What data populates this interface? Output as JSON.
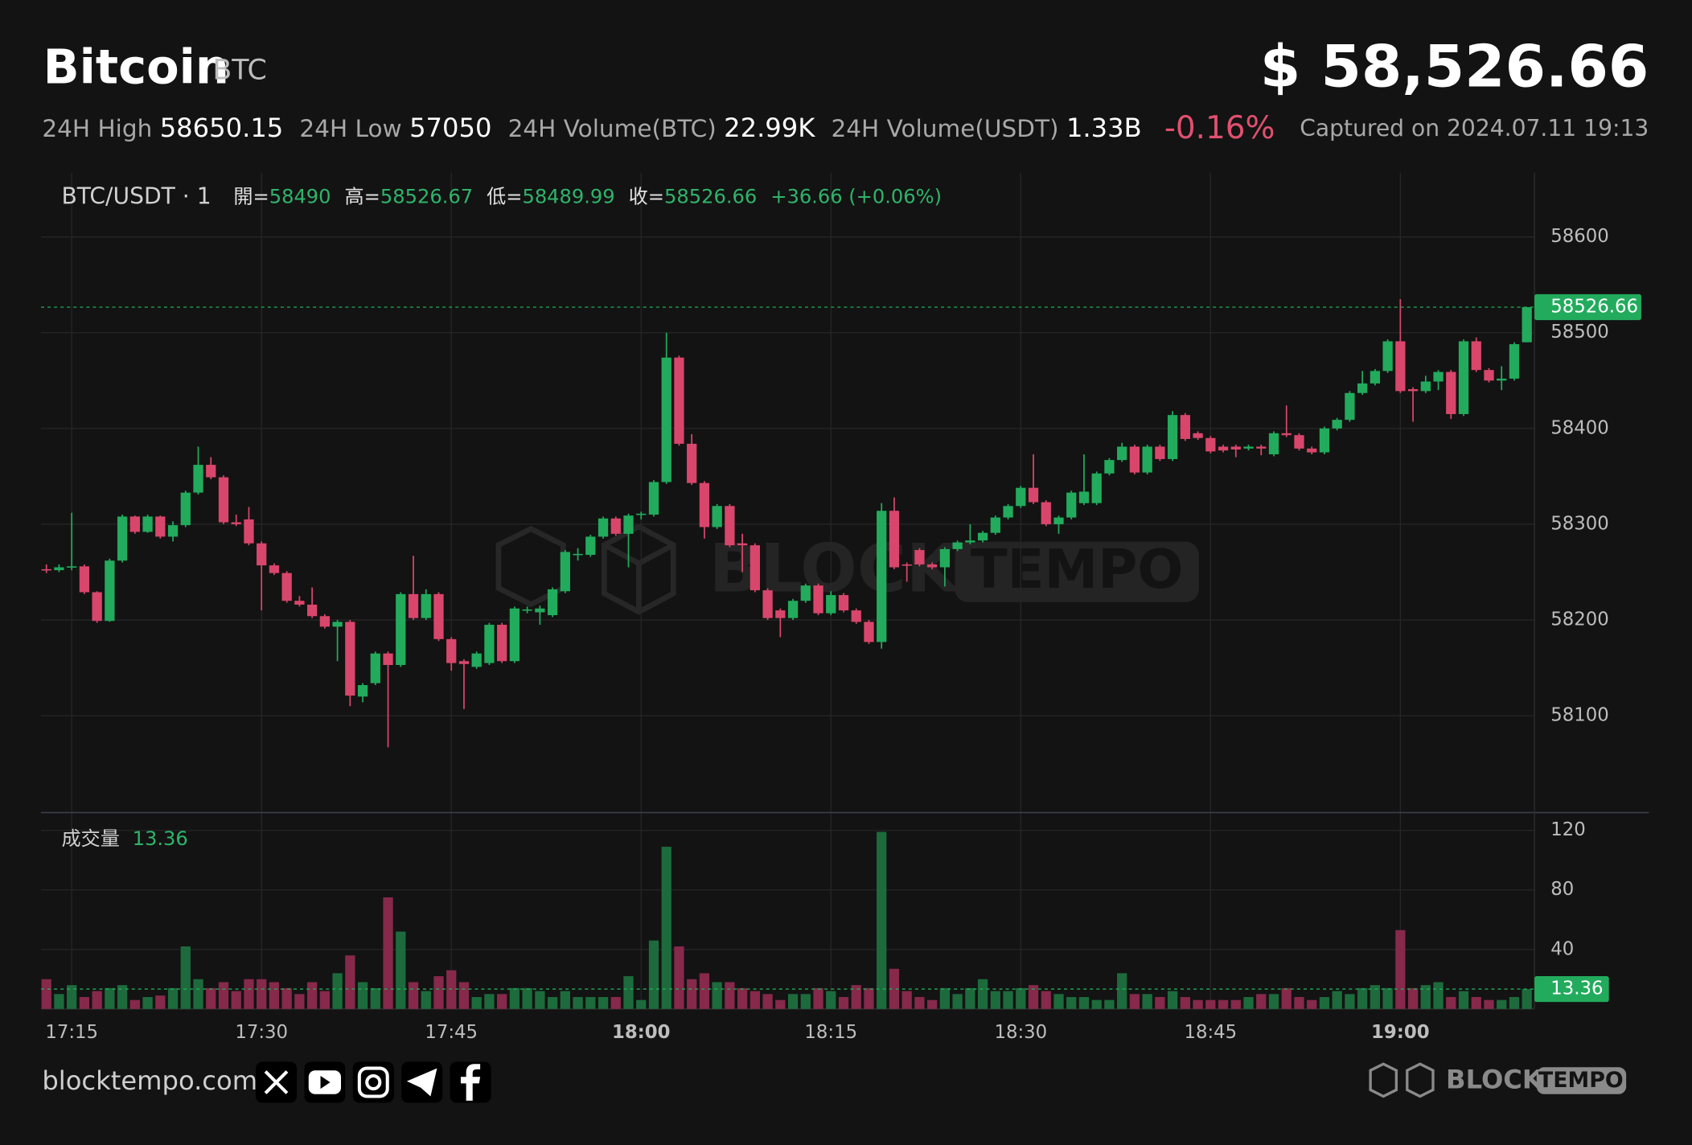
{
  "header": {
    "title": "Bitcoin",
    "symbol": "BTC",
    "price": "$ 58,526.66",
    "stats": [
      {
        "label": "24H High",
        "value": "58650.15"
      },
      {
        "label": "24H Low",
        "value": "57050"
      },
      {
        "label": "24H Volume(BTC)",
        "value": "22.99K"
      },
      {
        "label": "24H Volume(USDT)",
        "value": "1.33B"
      }
    ],
    "change": "-0.16%",
    "captured": "Captured on 2024.07.11 19:13"
  },
  "chart_data": {
    "type": "candlestick",
    "pair_label": "BTC/USDT · 1",
    "legend_labels": [
      "開=",
      "高=",
      "低=",
      "收="
    ],
    "change_label": "+36.66 (+0.06%)",
    "volume_label": "成交量",
    "up_color": "#22ab5c",
    "down_color": "#d9466b",
    "volume_up_color": "#1d6b3c",
    "volume_down_color": "#86294a",
    "grid": true,
    "categories": [
      null,
      null,
      "17:15",
      null,
      null,
      null,
      null,
      null,
      null,
      null,
      null,
      null,
      null,
      null,
      null,
      null,
      null,
      "17:30",
      null,
      null,
      null,
      null,
      null,
      null,
      null,
      null,
      null,
      null,
      null,
      null,
      null,
      null,
      "17:45",
      null,
      null,
      null,
      null,
      null,
      null,
      null,
      null,
      null,
      null,
      null,
      null,
      null,
      null,
      "18:00",
      null,
      null,
      null,
      null,
      null,
      null,
      null,
      null,
      null,
      null,
      null,
      null,
      null,
      null,
      "18:15",
      null,
      null,
      null,
      null,
      null,
      null,
      null,
      null,
      null,
      null,
      null,
      null,
      null,
      null,
      "18:30",
      null,
      null,
      null,
      null,
      null,
      null,
      null,
      null,
      null,
      null,
      null,
      null,
      null,
      null,
      "18:45",
      null,
      null,
      null,
      null,
      null,
      null,
      null,
      null,
      null,
      null,
      null,
      null,
      null,
      null,
      "19:00",
      null,
      null,
      null,
      null,
      null,
      null,
      null,
      null,
      null,
      null
    ],
    "open": [
      58253,
      58252,
      58255,
      58256,
      58229,
      58199,
      58262,
      58308,
      58292,
      58308,
      58287,
      58299,
      58333,
      58362,
      58349,
      58302,
      58305,
      58280,
      58257,
      58249,
      58220,
      58216,
      58204,
      58193,
      58198,
      58120,
      58134,
      58165,
      58153,
      58227,
      58202,
      58227,
      58180,
      58157,
      58151,
      58155,
      58195,
      58157,
      58210,
      58208,
      58205,
      58230,
      58268,
      58268,
      58287,
      58306,
      58290,
      58310,
      58310,
      58344,
      58474,
      58384,
      58343,
      58297,
      58319,
      58280,
      58278,
      58231,
      58210,
      58202,
      58220,
      58236,
      58207,
      58226,
      58210,
      58198,
      58177,
      58314,
      58258,
      58273,
      58258,
      58255,
      58274,
      58281,
      58283,
      58291,
      58307,
      58319,
      58338,
      58323,
      58300,
      58307,
      58322,
      58322,
      58353,
      58367,
      58381,
      58354,
      58381,
      58368,
      58414,
      58395,
      58390,
      58381,
      58381,
      58379,
      58381,
      58373,
      58395,
      58393,
      58379,
      58375,
      58400,
      58409,
      58437,
      58447,
      58460,
      58491,
      58441,
      58439,
      58449,
      58459,
      58415,
      58491,
      58461,
      58450,
      58452,
      58490
    ],
    "high": [
      58258,
      58258,
      58312,
      58258,
      58230,
      58264,
      58310,
      58309,
      58310,
      58309,
      58303,
      58335,
      58381,
      58370,
      58351,
      58310,
      58318,
      58282,
      58259,
      58251,
      58225,
      58234,
      58206,
      58200,
      58200,
      58134,
      58167,
      58167,
      58229,
      58267,
      58232,
      58229,
      58182,
      58159,
      58167,
      58197,
      58197,
      58214,
      58214,
      58215,
      58234,
      58273,
      58275,
      58289,
      58308,
      58308,
      58311,
      58313,
      58346,
      58500,
      58476,
      58394,
      58345,
      58321,
      58321,
      58290,
      58280,
      58233,
      58212,
      58222,
      58238,
      58238,
      58230,
      58228,
      58212,
      58200,
      58322,
      58328,
      58260,
      58275,
      58260,
      58276,
      58283,
      58300,
      58293,
      58309,
      58321,
      58340,
      58373,
      58325,
      58309,
      58335,
      58373,
      58355,
      58369,
      58385,
      58383,
      58383,
      58383,
      58418,
      58416,
      58397,
      58392,
      58383,
      58383,
      58383,
      58383,
      58397,
      58424,
      58395,
      58381,
      58402,
      58411,
      58439,
      58460,
      58462,
      58493,
      58535,
      58443,
      58455,
      58461,
      58461,
      58493,
      58495,
      58463,
      58465,
      58490,
      58526.67
    ],
    "low": [
      58249,
      58250,
      58252,
      58227,
      58197,
      58198,
      58260,
      58290,
      58291,
      58285,
      58282,
      58297,
      58331,
      58347,
      58300,
      58298,
      58278,
      58210,
      58247,
      58218,
      58214,
      58202,
      58191,
      58157,
      58110,
      58114,
      58132,
      58067,
      58151,
      58200,
      58200,
      58178,
      58147,
      58107,
      58149,
      58153,
      58155,
      58155,
      58207,
      58195,
      58203,
      58228,
      58262,
      58266,
      58285,
      58288,
      58255,
      58305,
      58308,
      58342,
      58382,
      58341,
      58285,
      58295,
      58276,
      58250,
      58229,
      58200,
      58182,
      58200,
      58218,
      58205,
      58205,
      58208,
      58196,
      58175,
      58170,
      58253,
      58240,
      58256,
      58253,
      58235,
      58272,
      58279,
      58281,
      58289,
      58305,
      58317,
      58321,
      58298,
      58290,
      58305,
      58320,
      58320,
      58351,
      58365,
      58352,
      58352,
      58366,
      58366,
      58387,
      58388,
      58374,
      58375,
      58370,
      58377,
      58372,
      58371,
      58391,
      58377,
      58373,
      58373,
      58398,
      58407,
      58435,
      58445,
      58458,
      58437,
      58407,
      58437,
      58440,
      58410,
      58413,
      58459,
      58448,
      58440,
      58450,
      58489.99
    ],
    "close": [
      58252,
      58255,
      58256,
      58229,
      58199,
      58262,
      58308,
      58292,
      58308,
      58287,
      58299,
      58333,
      58362,
      58349,
      58302,
      58300,
      58280,
      58257,
      58249,
      58220,
      58216,
      58204,
      58193,
      58198,
      58121,
      58132,
      58165,
      58153,
      58227,
      58202,
      58227,
      58180,
      58155,
      58154,
      58165,
      58195,
      58157,
      58212,
      58211,
      58212,
      58232,
      58271,
      58269,
      58287,
      58306,
      58290,
      58309,
      58311,
      58344,
      58474,
      58384,
      58343,
      58297,
      58319,
      58278,
      58278,
      58231,
      58202,
      58202,
      58220,
      58236,
      58207,
      58226,
      58210,
      58198,
      58177,
      58314,
      58255,
      58257,
      58258,
      58255,
      58274,
      58281,
      58283,
      58291,
      58307,
      58319,
      58338,
      58323,
      58300,
      58307,
      58333,
      58334,
      58353,
      58367,
      58381,
      58354,
      58381,
      58368,
      58414,
      58389,
      58390,
      58376,
      58377,
      58378,
      58381,
      58379,
      58395,
      58393,
      58379,
      58375,
      58400,
      58409,
      58437,
      58447,
      58460,
      58491,
      58439,
      58439,
      58449,
      58459,
      58415,
      58491,
      58461,
      58450,
      58452,
      58488,
      58526.66
    ],
    "volume": [
      20,
      10,
      16,
      8,
      12,
      14,
      16,
      6,
      8,
      9,
      14,
      42,
      20,
      14,
      18,
      12,
      20,
      20,
      18,
      14,
      10,
      18,
      12,
      24,
      36,
      18,
      14,
      75,
      52,
      18,
      12,
      22,
      26,
      18,
      8,
      10,
      10,
      14,
      14,
      12,
      8,
      12,
      8,
      8,
      8,
      8,
      22,
      6,
      46,
      109,
      42,
      20,
      24,
      18,
      18,
      14,
      12,
      10,
      6,
      10,
      10,
      14,
      12,
      8,
      16,
      14,
      119,
      27,
      12,
      8,
      6,
      14,
      10,
      14,
      20,
      12,
      12,
      14,
      16,
      12,
      10,
      8,
      8,
      6,
      6,
      24,
      10,
      10,
      8,
      12,
      8,
      6,
      6,
      6,
      6,
      8,
      10,
      10,
      14,
      8,
      6,
      8,
      12,
      10,
      14,
      16,
      14,
      53,
      14,
      16,
      18,
      8,
      12,
      8,
      6,
      6,
      8,
      13.36
    ],
    "ylim": [
      58000,
      58667
    ],
    "yticks": [
      58100,
      58200,
      58300,
      58400,
      58500,
      58600
    ],
    "volume_ylim": [
      0,
      132
    ],
    "volume_yticks": [
      40,
      80,
      120
    ]
  },
  "footer": {
    "site": "blocktempo.com",
    "logo": {
      "left": "BLOCK",
      "right": "TEMPO"
    }
  }
}
